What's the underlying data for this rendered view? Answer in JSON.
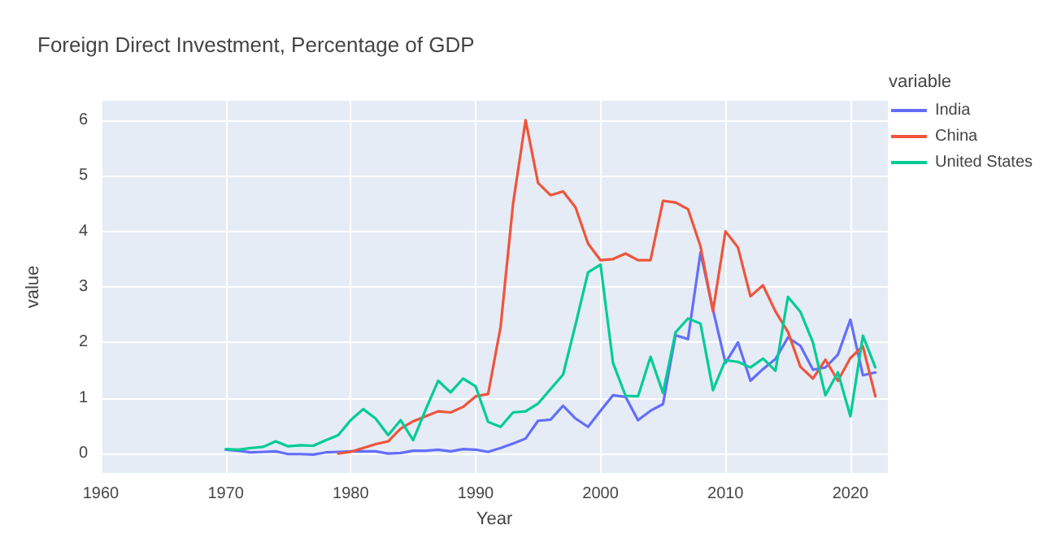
{
  "chart_data": {
    "type": "line",
    "title": "Foreign Direct Investment, Percentage of GDP",
    "xlabel": "Year",
    "ylabel": "value",
    "legend_title": "variable",
    "legend": "right",
    "grid": true,
    "marker": "none",
    "line_style": "solid",
    "xlim": [
      1960,
      2023
    ],
    "xticks": [
      1960,
      1970,
      1980,
      1990,
      2000,
      2010,
      2020
    ],
    "ylim": [
      -0.35,
      6.35
    ],
    "yticks": [
      0,
      1,
      2,
      3,
      4,
      5,
      6
    ],
    "x": [
      1970,
      1971,
      1972,
      1973,
      1974,
      1975,
      1976,
      1977,
      1978,
      1979,
      1980,
      1981,
      1982,
      1983,
      1984,
      1985,
      1986,
      1987,
      1988,
      1989,
      1990,
      1991,
      1992,
      1993,
      1994,
      1995,
      1996,
      1997,
      1998,
      1999,
      2000,
      2001,
      2002,
      2003,
      2004,
      2005,
      2006,
      2007,
      2008,
      2009,
      2010,
      2011,
      2012,
      2013,
      2014,
      2015,
      2016,
      2017,
      2018,
      2019,
      2020,
      2021,
      2022
    ],
    "series": [
      {
        "name": "India",
        "color": "#636efa",
        "values": [
          0.07,
          0.05,
          0.02,
          0.03,
          0.04,
          -0.01,
          -0.01,
          -0.02,
          0.02,
          0.03,
          0.04,
          0.04,
          0.04,
          0.0,
          0.01,
          0.05,
          0.05,
          0.07,
          0.04,
          0.08,
          0.07,
          0.03,
          0.1,
          0.18,
          0.27,
          0.59,
          0.61,
          0.86,
          0.63,
          0.48,
          0.77,
          1.05,
          1.02,
          0.6,
          0.77,
          0.89,
          2.13,
          2.06,
          3.62,
          2.59,
          1.63,
          2.0,
          1.31,
          1.52,
          1.7,
          2.09,
          1.94,
          1.51,
          1.55,
          1.78,
          2.41,
          1.41,
          1.46
        ]
      },
      {
        "name": "China",
        "color": "#ef553b",
        "values": [
          null,
          null,
          null,
          null,
          null,
          null,
          null,
          null,
          null,
          0.0,
          0.03,
          0.1,
          0.17,
          0.22,
          0.45,
          0.58,
          0.67,
          0.76,
          0.74,
          0.84,
          1.03,
          1.07,
          2.28,
          4.5,
          6.0,
          4.87,
          4.65,
          4.72,
          4.43,
          3.78,
          3.48,
          3.5,
          3.6,
          3.48,
          3.48,
          4.55,
          4.52,
          4.4,
          3.73,
          2.56,
          4.0,
          3.71,
          2.83,
          3.03,
          2.56,
          2.19,
          1.56,
          1.35,
          1.69,
          1.31,
          1.72,
          1.93,
          1.03
        ]
      },
      {
        "name": "United States",
        "color": "#00cc96",
        "values": [
          0.08,
          0.07,
          0.1,
          0.12,
          0.22,
          0.13,
          0.15,
          0.14,
          0.24,
          0.33,
          0.6,
          0.8,
          0.63,
          0.33,
          0.6,
          0.24,
          0.79,
          1.31,
          1.1,
          1.35,
          1.21,
          0.57,
          0.48,
          0.74,
          0.76,
          0.9,
          1.16,
          1.42,
          2.32,
          3.26,
          3.4,
          1.63,
          1.04,
          1.03,
          1.74,
          1.09,
          2.18,
          2.43,
          2.34,
          1.14,
          1.68,
          1.65,
          1.55,
          1.71,
          1.49,
          2.82,
          2.55,
          2.0,
          1.05,
          1.46,
          0.67,
          2.12,
          1.55
        ]
      }
    ]
  }
}
